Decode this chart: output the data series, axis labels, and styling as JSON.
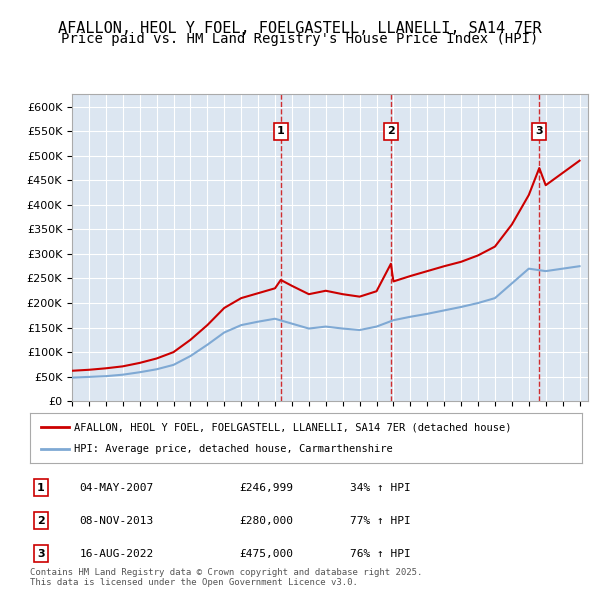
{
  "title": "AFALLON, HEOL Y FOEL, FOELGASTELL, LLANELLI, SA14 7ER",
  "subtitle": "Price paid vs. HM Land Registry's House Price Index (HPI)",
  "title_fontsize": 11,
  "subtitle_fontsize": 10,
  "ylim": [
    0,
    625000
  ],
  "yticks": [
    0,
    50000,
    100000,
    150000,
    200000,
    250000,
    300000,
    350000,
    400000,
    450000,
    500000,
    550000,
    600000
  ],
  "ytick_labels": [
    "£0",
    "£50K",
    "£100K",
    "£150K",
    "£200K",
    "£250K",
    "£300K",
    "£350K",
    "£400K",
    "£450K",
    "£500K",
    "£550K",
    "£600K"
  ],
  "background_color": "#dce6f1",
  "plot_bg_color": "#dce6f1",
  "red_line_color": "#cc0000",
  "blue_line_color": "#7fa9d4",
  "grid_color": "#ffffff",
  "sale_markers": [
    {
      "date_num": 2007.34,
      "price": 246999,
      "label": "1",
      "date_str": "04-MAY-2007",
      "price_str": "£246,999",
      "hpi_str": "34% ↑ HPI"
    },
    {
      "date_num": 2013.85,
      "price": 280000,
      "label": "2",
      "date_str": "08-NOV-2013",
      "price_str": "£280,000",
      "hpi_str": "77% ↑ HPI"
    },
    {
      "date_num": 2022.62,
      "price": 475000,
      "label": "3",
      "date_str": "16-AUG-2022",
      "price_str": "£475,000",
      "hpi_str": "76% ↑ HPI"
    }
  ],
  "legend_red_label": "AFALLON, HEOL Y FOEL, FOELGASTELL, LLANELLI, SA14 7ER (detached house)",
  "legend_blue_label": "HPI: Average price, detached house, Carmarthenshire",
  "footer_text": "Contains HM Land Registry data © Crown copyright and database right 2025.\nThis data is licensed under the Open Government Licence v3.0.",
  "hpi_data": {
    "years": [
      1995,
      1996,
      1997,
      1998,
      1999,
      2000,
      2001,
      2002,
      2003,
      2004,
      2005,
      2006,
      2007,
      2008,
      2009,
      2010,
      2011,
      2012,
      2013,
      2014,
      2015,
      2016,
      2017,
      2018,
      2019,
      2020,
      2021,
      2022,
      2023,
      2024,
      2025
    ],
    "values": [
      48000,
      49500,
      51000,
      54000,
      59000,
      65000,
      74000,
      92000,
      115000,
      140000,
      155000,
      162000,
      168000,
      158000,
      148000,
      152000,
      148000,
      145000,
      152000,
      165000,
      172000,
      178000,
      185000,
      192000,
      200000,
      210000,
      240000,
      270000,
      265000,
      270000,
      275000
    ]
  },
  "red_data": {
    "years": [
      1995,
      1996,
      1997,
      1998,
      1999,
      2000,
      2001,
      2002,
      2003,
      2004,
      2005,
      2006,
      2007.0,
      2007.34,
      2008,
      2009,
      2010,
      2011,
      2012,
      2013.0,
      2013.85,
      2014,
      2015,
      2016,
      2017,
      2018,
      2019,
      2020,
      2021,
      2022.0,
      2022.62,
      2023,
      2024,
      2025
    ],
    "values": [
      62000,
      64000,
      67000,
      71000,
      78000,
      87000,
      100000,
      125000,
      155000,
      190000,
      210000,
      220000,
      230000,
      246999,
      235000,
      218000,
      225000,
      218000,
      213000,
      224000,
      280000,
      244000,
      255000,
      265000,
      275000,
      284000,
      297000,
      315000,
      360000,
      420000,
      475000,
      440000,
      465000,
      490000
    ]
  }
}
